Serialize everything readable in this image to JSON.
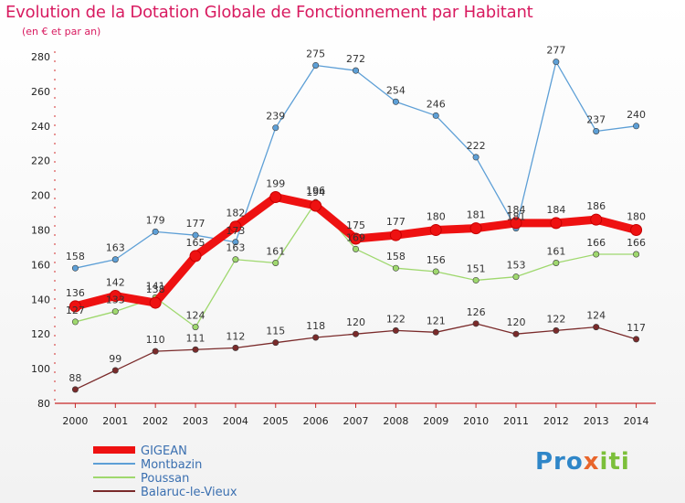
{
  "title": "Evolution de la Dotation Globale de Fonctionnement par Habitant",
  "subtitle": "(en € et par an)",
  "brand": {
    "p": "Pro",
    "x": "x",
    "i": "iti"
  },
  "chart_data": {
    "type": "line",
    "title": "Evolution de la Dotation Globale de Fonctionnement par Habitant",
    "subtitle": "(en € et par an)",
    "x": [
      "2000",
      "2001",
      "2002",
      "2003",
      "2004",
      "2005",
      "2006",
      "2007",
      "2008",
      "2009",
      "2010",
      "2011",
      "2012",
      "2013",
      "2014"
    ],
    "ylim": [
      80,
      280
    ],
    "yticks": [
      80,
      100,
      120,
      140,
      160,
      180,
      200,
      220,
      240,
      260,
      280
    ],
    "grid": false,
    "legend_position": "bottom-left",
    "series": [
      {
        "name": "GIGEAN",
        "color": "#ee1111",
        "width": 9,
        "values": [
          136,
          142,
          138,
          165,
          182,
          199,
          194,
          175,
          177,
          180,
          181,
          184,
          184,
          186,
          180
        ]
      },
      {
        "name": "Montbazin",
        "color": "#5d9fd6",
        "width": 1.3,
        "values": [
          158,
          163,
          179,
          177,
          173,
          239,
          275,
          272,
          254,
          246,
          222,
          181,
          277,
          237,
          240
        ]
      },
      {
        "name": "Poussan",
        "color": "#9fd86e",
        "width": 1.3,
        "values": [
          127,
          133,
          141,
          124,
          163,
          161,
          196,
          169,
          158,
          156,
          151,
          153,
          161,
          166,
          166
        ]
      },
      {
        "name": "Balaruc-le-Vieux",
        "color": "#7a2a2a",
        "width": 1.3,
        "values": [
          88,
          99,
          110,
          111,
          112,
          115,
          118,
          120,
          122,
          121,
          126,
          120,
          122,
          124,
          117
        ]
      }
    ]
  }
}
